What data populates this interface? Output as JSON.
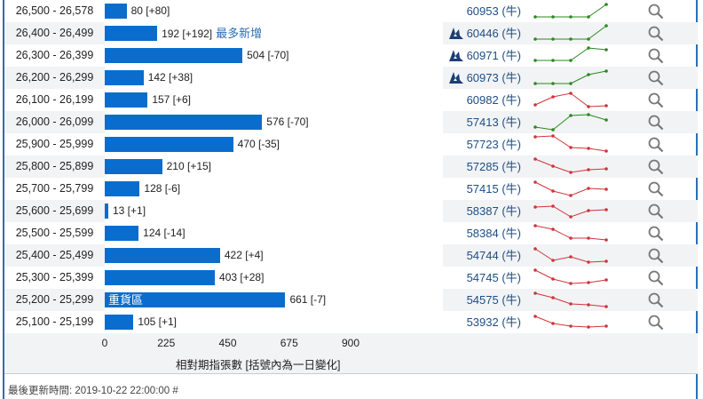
{
  "colors": {
    "bar": "#0a6dcd",
    "up": "#2a8a1e",
    "down": "#d0343c",
    "link": "#1d4e86"
  },
  "rows": [
    {
      "range": "26,500 - 26,578",
      "count": 80,
      "label": "80 [+80]",
      "tag": "",
      "code": "60953 (牛)",
      "logo": false,
      "trend": "up",
      "spark": [
        1,
        1,
        1,
        1,
        15
      ]
    },
    {
      "range": "26,400 - 26,499",
      "count": 192,
      "label": "192 [+192]",
      "tag": "最多新增",
      "code": "60446 (牛)",
      "logo": true,
      "trend": "up",
      "spark": [
        1,
        1,
        1,
        1,
        16
      ]
    },
    {
      "range": "26,300 - 26,399",
      "count": 504,
      "label": "504 [-70]",
      "tag": "",
      "code": "60971 (牛)",
      "logo": true,
      "trend": "up",
      "spark": [
        2,
        2,
        2,
        16,
        14
      ]
    },
    {
      "range": "26,200 - 26,299",
      "count": 142,
      "label": "142 [+38]",
      "tag": "",
      "code": "60973 (牛)",
      "logo": true,
      "trend": "up",
      "spark": [
        1,
        1,
        1,
        11,
        15
      ]
    },
    {
      "range": "26,100 - 26,199",
      "count": 157,
      "label": "157 [+6]",
      "tag": "",
      "code": "60982 (牛)",
      "logo": false,
      "trend": "down",
      "spark": [
        2,
        11,
        15,
        0,
        1
      ]
    },
    {
      "range": "26,000 - 26,099",
      "count": 576,
      "label": "576 [-70]",
      "tag": "",
      "code": "57413 (牛)",
      "logo": false,
      "trend": "up",
      "spark": [
        2,
        -1,
        15,
        16,
        10
      ]
    },
    {
      "range": "25,900 - 25,999",
      "count": 470,
      "label": "470 [-35]",
      "tag": "",
      "code": "57723 (牛)",
      "logo": false,
      "trend": "down",
      "spark": [
        16,
        17,
        4,
        3,
        0
      ]
    },
    {
      "range": "25,800 - 25,899",
      "count": 210,
      "label": "210 [+15]",
      "tag": "",
      "code": "57285 (牛)",
      "logo": false,
      "trend": "down",
      "spark": [
        16,
        8,
        1,
        4,
        5
      ]
    },
    {
      "range": "25,700 - 25,799",
      "count": 128,
      "label": "128 [-6]",
      "tag": "",
      "code": "57415 (牛)",
      "logo": false,
      "trend": "down",
      "spark": [
        15,
        5,
        0,
        8,
        7
      ]
    },
    {
      "range": "25,600 - 25,699",
      "count": 13,
      "label": "13 [+1]",
      "tag": "",
      "code": "58387 (牛)",
      "logo": false,
      "trend": "down",
      "spark": [
        12,
        13,
        1,
        8,
        9
      ]
    },
    {
      "range": "25,500 - 25,599",
      "count": 124,
      "label": "124 [-14]",
      "tag": "",
      "code": "58384 (牛)",
      "logo": false,
      "trend": "down",
      "spark": [
        16,
        12,
        2,
        2,
        0
      ]
    },
    {
      "range": "25,400 - 25,499",
      "count": 422,
      "label": "422 [+4]",
      "tag": "",
      "code": "54744 (牛)",
      "logo": false,
      "trend": "down",
      "spark": [
        15,
        2,
        6,
        0,
        1
      ]
    },
    {
      "range": "25,300 - 25,399",
      "count": 403,
      "label": "403 [+28]",
      "tag": "",
      "code": "54745 (牛)",
      "logo": false,
      "trend": "down",
      "spark": [
        16,
        6,
        1,
        2,
        5
      ]
    },
    {
      "range": "25,200 - 25,299",
      "count": 661,
      "label": "661 [-7]",
      "tag": "",
      "inner": "重貨區",
      "code": "54575 (牛)",
      "logo": false,
      "trend": "down",
      "spark": [
        15,
        10,
        3,
        2,
        0
      ]
    },
    {
      "range": "25,100 - 25,199",
      "count": 105,
      "label": "105 [+1]",
      "tag": "",
      "code": "53932 (牛)",
      "logo": false,
      "trend": "down",
      "spark": [
        14,
        6,
        3,
        2,
        3
      ]
    }
  ],
  "axis": {
    "max": 900,
    "ticks": [
      "0",
      "225",
      "450",
      "675",
      "900"
    ],
    "title": "相對期指張數 [括號內為一日變化]"
  },
  "footer": "最後更新時間: 2019-10-22 22:00:00 #"
}
